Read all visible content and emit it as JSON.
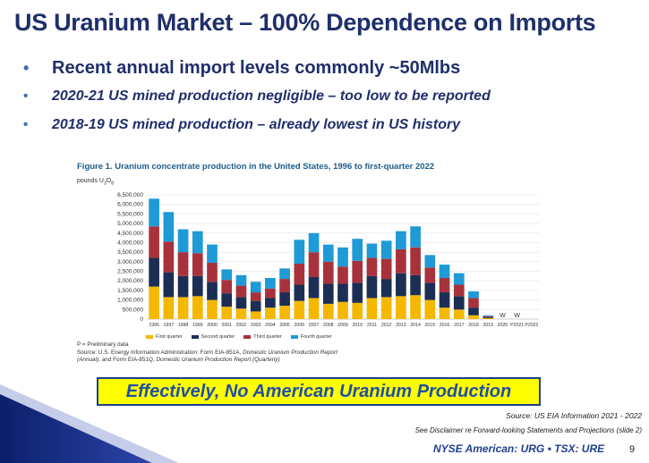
{
  "slide": {
    "title": "US Uranium Market – 100% Dependence on Imports",
    "bullets": [
      "Recent annual import levels commonly ~50Mlbs",
      "2020-21 US mined production negligible – too low to be reported",
      "2018-19 US mined production – already lowest in US history"
    ],
    "banner": "Effectively, No American Uranium Production",
    "source": "Source:  US EIA Information 2021 - 2022",
    "disclaimer": "See Disclaimer re Forward-looking Statements and Projections (slide 2)",
    "ticker": "NYSE American: URG • TSX: URE",
    "page_number": "9",
    "bullet_glyph": "•"
  },
  "chart_data": {
    "type": "bar",
    "stacked": true,
    "title": "Figure 1.  Uranium concentrate production in the United States, 1996 to first-quarter 2022",
    "ylabel": "pounds U",
    "ylabel_sub": "3",
    "ylabel_tail": "O",
    "ylabel_sub2": "8",
    "ylim": [
      0,
      6500000
    ],
    "yticks": [
      "6,500,000",
      "6,000,000",
      "5,500,000",
      "5,000,000",
      "4,500,000",
      "4,000,000",
      "3,500,000",
      "3,000,000",
      "2,500,000",
      "2,000,000",
      "1,500,000",
      "1,000,000",
      "500,000",
      "0"
    ],
    "ytick_values": [
      6500000,
      6000000,
      5500000,
      5000000,
      4500000,
      4000000,
      3500000,
      3000000,
      2500000,
      2000000,
      1500000,
      1000000,
      500000,
      0
    ],
    "grid": true,
    "legend_position": "bottom",
    "categories": [
      "1996",
      "1997",
      "1998",
      "1999",
      "2000",
      "2001",
      "2002",
      "2003",
      "2004",
      "2005",
      "2006",
      "2007",
      "2008",
      "2009",
      "2010",
      "2011",
      "2012",
      "2013",
      "2014",
      "2015",
      "2016",
      "2017",
      "2018",
      "2019",
      "2020",
      "P2021",
      "P2022"
    ],
    "series": [
      {
        "name": "First quarter",
        "color": "#f5b800",
        "values": [
          1700000,
          1150000,
          1150000,
          1200000,
          1000000,
          650000,
          550000,
          400000,
          600000,
          700000,
          950000,
          1100000,
          800000,
          900000,
          850000,
          1100000,
          1150000,
          1200000,
          1250000,
          1000000,
          600000,
          500000,
          200000,
          50000,
          0,
          0,
          0
        ]
      },
      {
        "name": "Second quarter",
        "color": "#1c2e54",
        "values": [
          1500000,
          1300000,
          1100000,
          1050000,
          950000,
          700000,
          600000,
          550000,
          500000,
          700000,
          850000,
          1100000,
          1050000,
          950000,
          1050000,
          1150000,
          950000,
          1200000,
          1050000,
          900000,
          800000,
          700000,
          400000,
          50000,
          0,
          0,
          0
        ]
      },
      {
        "name": "Third quarter",
        "color": "#a8323c",
        "values": [
          1650000,
          1600000,
          1250000,
          1200000,
          1000000,
          700000,
          600000,
          450000,
          500000,
          700000,
          1100000,
          1300000,
          1150000,
          900000,
          1150000,
          950000,
          1050000,
          1250000,
          1450000,
          800000,
          750000,
          600000,
          500000,
          50000,
          0,
          0,
          0
        ]
      },
      {
        "name": "Fourth quarter",
        "color": "#1e9ad6",
        "values": [
          1450000,
          1550000,
          1200000,
          1150000,
          950000,
          550000,
          550000,
          550000,
          550000,
          550000,
          1250000,
          1000000,
          900000,
          1000000,
          1150000,
          750000,
          950000,
          950000,
          1100000,
          650000,
          700000,
          600000,
          350000,
          50000,
          0,
          0,
          0
        ]
      }
    ],
    "bar_labels": [
      "",
      "",
      "",
      "",
      "",
      "",
      "",
      "",
      "",
      "",
      "",
      "",
      "",
      "",
      "",
      "",
      "",
      "",
      "",
      "",
      "",
      "",
      "",
      "",
      "W",
      "W",
      ""
    ],
    "notes": [
      "P = Preliminary data",
      "Source: U.S. Energy Information Administration: Form EIA-851A, ",
      "Domestic Uranium Production Report",
      "(Annual)",
      ", and Form EIA-851Q, ",
      "Domestic Uranium Production Report (Quarterly)"
    ]
  }
}
